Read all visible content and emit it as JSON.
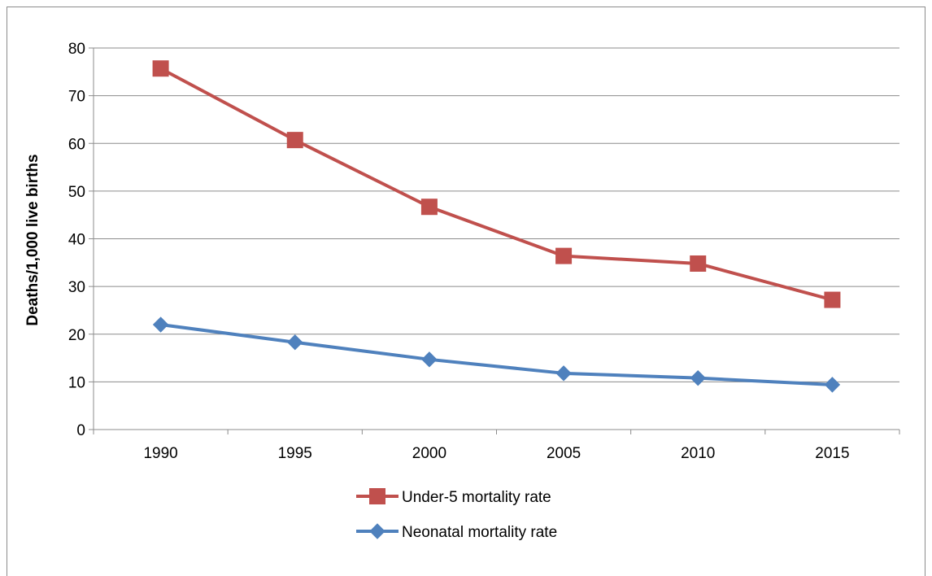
{
  "chart_data": {
    "type": "line",
    "title": "",
    "xlabel": "",
    "ylabel": "Deaths/1,000 live births",
    "categories": [
      "1990",
      "1995",
      "2000",
      "2005",
      "2010",
      "2015"
    ],
    "ylim": [
      0,
      80
    ],
    "yticks": [
      "0",
      "10",
      "20",
      "30",
      "40",
      "50",
      "60",
      "70",
      "80"
    ],
    "grid": true,
    "legend_position": "bottom",
    "series": [
      {
        "name": "Under-5 mortality rate",
        "values": [
          75.7,
          60.7,
          46.7,
          36.4,
          34.8,
          27.2
        ],
        "color": "#c0504d",
        "marker": "square"
      },
      {
        "name": "Neonatal mortality rate",
        "values": [
          22.0,
          18.3,
          14.7,
          11.8,
          10.8,
          9.4
        ],
        "color": "#4f81bd",
        "marker": "diamond"
      }
    ]
  }
}
